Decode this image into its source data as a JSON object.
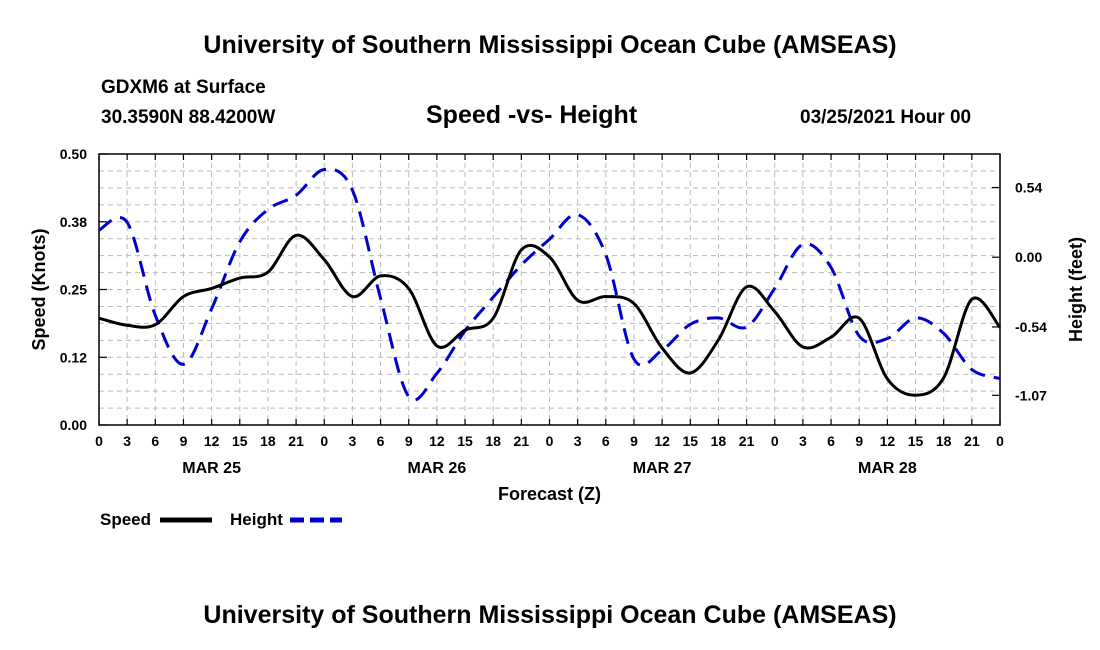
{
  "header": {
    "title": "University of Southern Mississippi Ocean Cube (AMSEAS)",
    "station": "GDXM6 at Surface",
    "coords": "30.3590N  88.4200W",
    "chart_title": "Speed -vs- Height",
    "datetime": "03/25/2021 Hour 00"
  },
  "footer": {
    "title": "University of Southern Mississippi Ocean Cube (AMSEAS)"
  },
  "legend": {
    "speed_label": "Speed",
    "height_label": "Height"
  },
  "chart_data": {
    "type": "line",
    "title": "Speed -vs- Height",
    "xlabel": "Forecast (Z)",
    "ylabel": "Speed (Knots)",
    "y2label": "Height (feet)",
    "x_range": [
      0,
      96
    ],
    "ylim": [
      0,
      0.5
    ],
    "y_ticks": [
      "0.50",
      "0.38",
      "0.25",
      "0.12",
      "0.00"
    ],
    "y_tick_values": [
      0.5,
      0.375,
      0.25,
      0.125,
      0.0
    ],
    "y2lim": [
      -1.3,
      0.8
    ],
    "y2_ticks": [
      "0.54",
      "0.00",
      "-0.54",
      "-1.07"
    ],
    "y2_tick_values": [
      0.54,
      0.0,
      -0.54,
      -1.07
    ],
    "x_tick_labels": [
      "0",
      "3",
      "6",
      "9",
      "12",
      "15",
      "18",
      "21",
      "0",
      "3",
      "6",
      "9",
      "12",
      "15",
      "18",
      "21",
      "0",
      "3",
      "6",
      "9",
      "12",
      "15",
      "18",
      "21",
      "0",
      "3",
      "6",
      "9",
      "12",
      "15",
      "18",
      "21",
      "0"
    ],
    "day_labels": [
      {
        "label": "MAR 25",
        "hour": 12
      },
      {
        "label": "MAR 26",
        "hour": 36
      },
      {
        "label": "MAR 27",
        "hour": 60
      },
      {
        "label": "MAR 28",
        "hour": 84
      }
    ],
    "grid": true,
    "legend_position": "bottom-left",
    "series": [
      {
        "name": "Speed",
        "axis": "left",
        "color": "#000000",
        "style": "solid",
        "x": [
          0,
          3,
          6,
          9,
          12,
          15,
          18,
          21,
          24,
          27,
          30,
          33,
          36,
          39,
          42,
          45,
          48,
          51,
          54,
          57,
          60,
          63,
          66,
          69,
          72,
          75,
          78,
          81,
          84,
          87,
          90,
          93,
          96
        ],
        "values": [
          0.197,
          0.184,
          0.185,
          0.237,
          0.252,
          0.271,
          0.282,
          0.35,
          0.305,
          0.237,
          0.275,
          0.252,
          0.146,
          0.175,
          0.197,
          0.323,
          0.31,
          0.23,
          0.237,
          0.224,
          0.142,
          0.096,
          0.157,
          0.255,
          0.209,
          0.144,
          0.162,
          0.197,
          0.085,
          0.055,
          0.087,
          0.232,
          0.18
        ]
      },
      {
        "name": "Height",
        "axis": "right",
        "color": "#0000cc",
        "style": "dashed",
        "x": [
          0,
          3,
          6,
          9,
          12,
          15,
          18,
          21,
          24,
          27,
          30,
          33,
          36,
          39,
          42,
          45,
          48,
          51,
          54,
          57,
          60,
          63,
          66,
          69,
          72,
          75,
          78,
          81,
          84,
          87,
          90,
          93,
          96
        ],
        "values": [
          0.21,
          0.27,
          -0.45,
          -0.83,
          -0.4,
          0.12,
          0.37,
          0.48,
          0.68,
          0.52,
          -0.32,
          -1.08,
          -0.9,
          -0.57,
          -0.31,
          -0.06,
          0.14,
          0.33,
          0.02,
          -0.79,
          -0.72,
          -0.52,
          -0.47,
          -0.54,
          -0.24,
          0.1,
          -0.08,
          -0.61,
          -0.63,
          -0.47,
          -0.59,
          -0.87,
          -0.94
        ]
      }
    ]
  }
}
